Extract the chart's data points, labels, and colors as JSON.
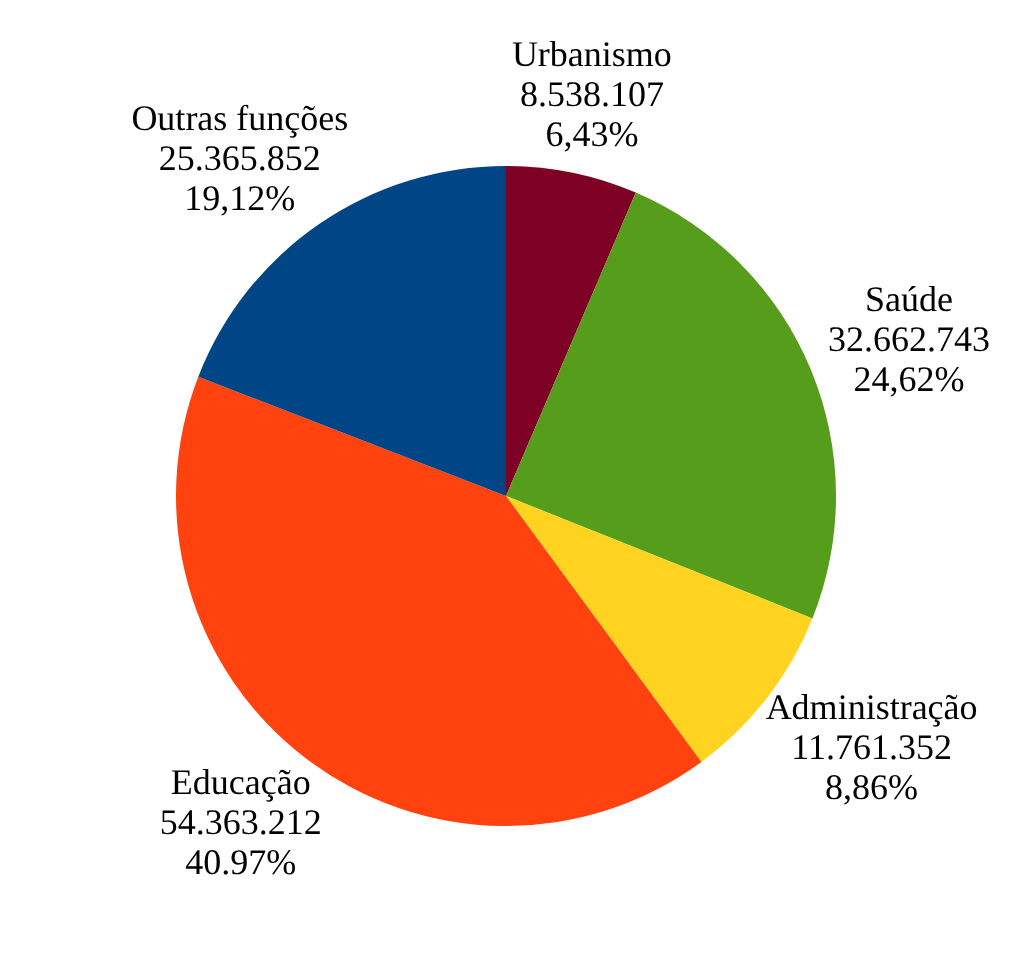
{
  "chart_data": {
    "type": "pie",
    "categories": [
      "Urbanismo",
      "Saúde",
      "Administração",
      "Educação",
      "Outras funções"
    ],
    "values": [
      8538107,
      32662743,
      11761352,
      54363212,
      25365852
    ],
    "value_labels": [
      "8.538.107\n6,43%",
      "32.662.743\n24,62%",
      "11.761.352\n8,86%",
      "54.363.212\n40.97%",
      "25.365.852\n19,12%"
    ],
    "colors": [
      "#7f0025",
      "#579d1c",
      "#ffd320",
      "#ff420e",
      "#004586"
    ]
  }
}
